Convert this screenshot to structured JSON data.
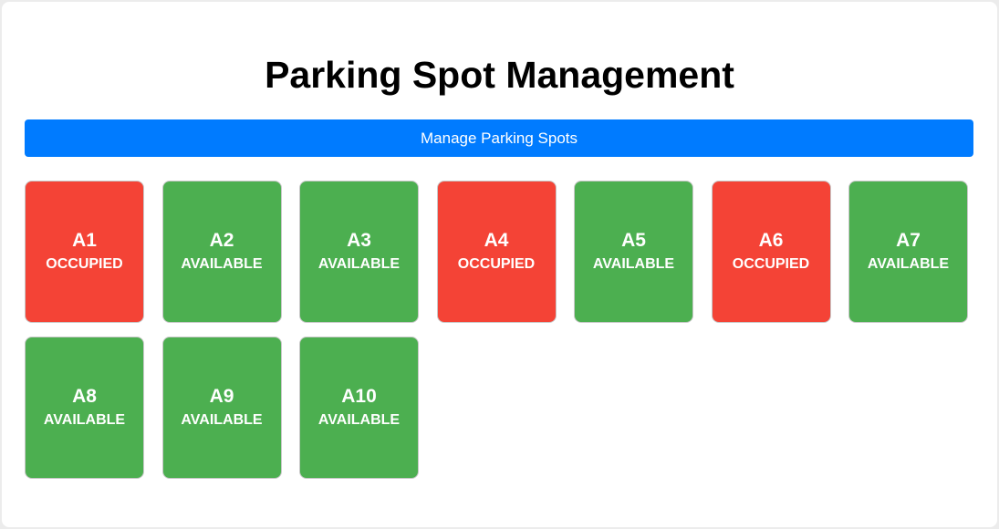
{
  "page": {
    "title": "Parking Spot Management"
  },
  "toolbar": {
    "manage_label": "Manage Parking Spots",
    "manage_color": "#007bff"
  },
  "colors": {
    "OCCUPIED": "#f44336",
    "AVAILABLE": "#4caf50"
  },
  "spots": [
    {
      "id": "A1",
      "status": "OCCUPIED"
    },
    {
      "id": "A2",
      "status": "AVAILABLE"
    },
    {
      "id": "A3",
      "status": "AVAILABLE"
    },
    {
      "id": "A4",
      "status": "OCCUPIED"
    },
    {
      "id": "A5",
      "status": "AVAILABLE"
    },
    {
      "id": "A6",
      "status": "OCCUPIED"
    },
    {
      "id": "A7",
      "status": "AVAILABLE"
    },
    {
      "id": "A8",
      "status": "AVAILABLE"
    },
    {
      "id": "A9",
      "status": "AVAILABLE"
    },
    {
      "id": "A10",
      "status": "AVAILABLE"
    }
  ]
}
